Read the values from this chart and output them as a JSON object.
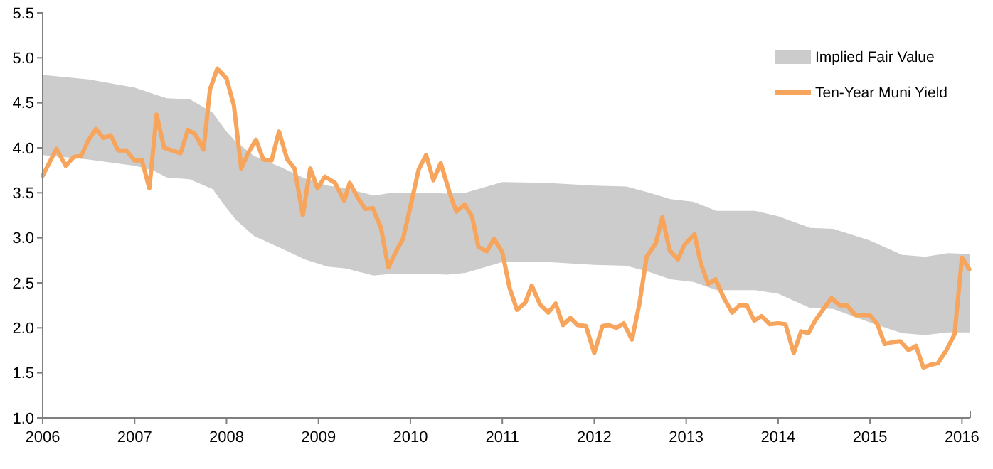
{
  "chart_data": {
    "type": "line",
    "legend": "top right",
    "marker": "none",
    "line_style": "solid",
    "grid": false,
    "xlim": [
      2006,
      2016.09
    ],
    "xticks": [
      2006,
      2007,
      2008,
      2009,
      2010,
      2011,
      2012,
      2013,
      2014,
      2015,
      2016
    ],
    "ylim": [
      1.0,
      5.5
    ],
    "yticks": [
      {
        "value": 1,
        "label": "1.0"
      },
      1.5,
      {
        "value": 2,
        "label": "2.0"
      },
      2.5,
      {
        "value": 3,
        "label": "3.0"
      },
      3.5,
      {
        "value": 4,
        "label": "4.0"
      },
      4.5,
      {
        "value": 5,
        "label": "5.0"
      },
      5.5
    ],
    "series": [
      {
        "name": "Implied Fair Value",
        "type": "area",
        "color": "#cccccc",
        "values": [
          null,
          null,
          null,
          null,
          null,
          null,
          null,
          null,
          null,
          null,
          null,
          null,
          null,
          null,
          null,
          null,
          null,
          null,
          null,
          null,
          null,
          null,
          null,
          null,
          null,
          null,
          null,
          null,
          null,
          null,
          null,
          null,
          null,
          null,
          null,
          null
        ],
        "x": [
          2006.0,
          2006.5,
          2007.0,
          2007.2,
          2007.35,
          2007.6,
          2007.85,
          2008.0,
          2008.1,
          2008.3,
          2008.6,
          2008.85,
          2009.1,
          2009.3,
          2009.6,
          2009.8,
          2010.2,
          2010.4,
          2010.6,
          2011.0,
          2011.5,
          2012.0,
          2012.35,
          2012.6,
          2012.83,
          2013.08,
          2013.33,
          2013.75,
          2014.0,
          2014.35,
          2014.6,
          2015.0,
          2015.35,
          2015.6,
          2015.85,
          2016.09
        ],
        "upper": [
          4.81,
          4.76,
          4.67,
          4.6,
          4.55,
          4.54,
          4.39,
          4.18,
          4.07,
          3.91,
          3.78,
          3.66,
          3.58,
          3.55,
          3.47,
          3.5,
          3.5,
          3.49,
          3.5,
          3.62,
          3.61,
          3.58,
          3.57,
          3.5,
          3.43,
          3.4,
          3.3,
          3.3,
          3.24,
          3.11,
          3.1,
          2.97,
          2.81,
          2.79,
          2.83,
          2.82
        ],
        "lower": [
          3.92,
          3.87,
          3.8,
          3.75,
          3.67,
          3.65,
          3.54,
          3.33,
          3.2,
          3.02,
          2.88,
          2.76,
          2.68,
          2.66,
          2.58,
          2.6,
          2.6,
          2.59,
          2.61,
          2.73,
          2.73,
          2.7,
          2.69,
          2.62,
          2.54,
          2.51,
          2.42,
          2.42,
          2.38,
          2.22,
          2.21,
          2.06,
          1.94,
          1.92,
          1.95,
          1.95
        ]
      },
      {
        "name": "Ten-Year Muni Yield",
        "color": "#f7a45c",
        "x": [
          2006.0,
          2006.15,
          2006.25,
          2006.34,
          2006.42,
          2006.49,
          2006.58,
          2006.66,
          2006.74,
          2006.82,
          2006.91,
          2007.0,
          2007.08,
          2007.16,
          2007.24,
          2007.32,
          2007.41,
          2007.5,
          2007.58,
          2007.66,
          2007.75,
          2007.82,
          2007.9,
          2008.0,
          2008.08,
          2008.16,
          2008.24,
          2008.32,
          2008.4,
          2008.49,
          2008.57,
          2008.66,
          2008.74,
          2008.83,
          2008.91,
          2008.99,
          2009.07,
          2009.18,
          2009.28,
          2009.34,
          2009.43,
          2009.51,
          2009.59,
          2009.68,
          2009.76,
          2009.85,
          2009.92,
          2010.01,
          2010.09,
          2010.17,
          2010.25,
          2010.33,
          2010.43,
          2010.5,
          2010.59,
          2010.67,
          2010.74,
          2010.83,
          2010.91,
          2011.0,
          2011.08,
          2011.16,
          2011.25,
          2011.32,
          2011.41,
          2011.5,
          2011.58,
          2011.66,
          2011.74,
          2011.82,
          2011.91,
          2012.0,
          2012.09,
          2012.16,
          2012.24,
          2012.32,
          2012.41,
          2012.49,
          2012.57,
          2012.67,
          2012.74,
          2012.82,
          2012.91,
          2012.98,
          2013.09,
          2013.16,
          2013.24,
          2013.32,
          2013.41,
          2013.5,
          2013.58,
          2013.66,
          2013.74,
          2013.82,
          2013.91,
          2014.0,
          2014.08,
          2014.17,
          2014.25,
          2014.33,
          2014.41,
          2014.5,
          2014.58,
          2014.67,
          2014.75,
          2014.84,
          2014.92,
          2015.0,
          2015.08,
          2015.16,
          2015.24,
          2015.33,
          2015.42,
          2015.5,
          2015.58,
          2015.66,
          2015.74,
          2015.83,
          2015.92,
          2016.0,
          2016.08
        ],
        "values": [
          3.69,
          3.99,
          3.8,
          3.9,
          3.91,
          4.07,
          4.21,
          4.11,
          4.14,
          3.97,
          3.97,
          3.86,
          3.86,
          3.55,
          4.37,
          4.0,
          3.97,
          3.94,
          4.2,
          4.15,
          3.98,
          4.65,
          4.88,
          4.77,
          4.47,
          3.77,
          3.95,
          4.09,
          3.87,
          3.86,
          4.18,
          3.87,
          3.77,
          3.25,
          3.77,
          3.55,
          3.68,
          3.61,
          3.41,
          3.61,
          3.44,
          3.32,
          3.33,
          3.11,
          2.67,
          2.86,
          2.99,
          3.39,
          3.76,
          3.92,
          3.64,
          3.83,
          3.49,
          3.29,
          3.37,
          3.24,
          2.9,
          2.85,
          2.99,
          2.84,
          2.44,
          2.2,
          2.28,
          2.47,
          2.26,
          2.17,
          2.27,
          2.03,
          2.11,
          2.03,
          2.02,
          1.72,
          2.02,
          2.03,
          2.0,
          2.05,
          1.87,
          2.26,
          2.79,
          2.94,
          3.23,
          2.86,
          2.76,
          2.92,
          3.04,
          2.71,
          2.49,
          2.54,
          2.33,
          2.17,
          2.25,
          2.25,
          2.08,
          2.13,
          2.04,
          2.05,
          2.04,
          1.72,
          1.96,
          1.94,
          2.09,
          2.22,
          2.33,
          2.25,
          2.25,
          2.14,
          2.14,
          2.14,
          2.04,
          1.82,
          1.84,
          1.85,
          1.75,
          1.8,
          1.56,
          1.59,
          1.61,
          1.75,
          1.93,
          2.78,
          2.65
        ]
      }
    ]
  }
}
